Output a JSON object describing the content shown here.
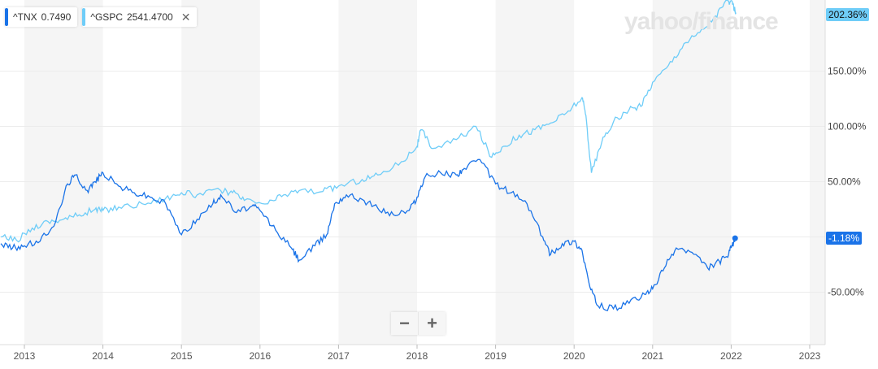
{
  "legend": [
    {
      "symbol": "^TNX",
      "value": "0.7490",
      "color": "#1a73e8"
    },
    {
      "symbol": "^GSPC",
      "value": "2541.4700",
      "color": "#6fcdf8",
      "close": "✕"
    }
  ],
  "watermark": "yahoo/finance",
  "zoom": {
    "minus": "−",
    "plus": "+"
  },
  "chart_data": {
    "type": "line",
    "xlabel": "",
    "ylabel": "",
    "xlim": [
      2012.7,
      2023.2
    ],
    "ylim": [
      -90,
      218
    ],
    "x_ticks": [
      "2013",
      "2014",
      "2015",
      "2016",
      "2017",
      "2018",
      "2019",
      "2020",
      "2021",
      "2022",
      "2023"
    ],
    "y_ticks": [
      {
        "v": 150,
        "label": "150.00%"
      },
      {
        "v": 100,
        "label": "100.00%"
      },
      {
        "v": 50,
        "label": "50.00%"
      },
      {
        "v": -50,
        "label": "-50.00%"
      }
    ],
    "end_labels": {
      "gspc": "202.36%",
      "tnx": "-1.18%"
    },
    "series": [
      {
        "name": "^GSPC",
        "color": "#6fcdf8",
        "x": [
          2012.7,
          2012.9,
          2013.1,
          2013.3,
          2013.5,
          2013.7,
          2013.9,
          2014.0,
          2014.2,
          2014.5,
          2014.8,
          2015.0,
          2015.2,
          2015.5,
          2015.65,
          2015.8,
          2016.1,
          2016.3,
          2016.5,
          2016.8,
          2017.0,
          2017.3,
          2017.5,
          2017.8,
          2018.0,
          2018.05,
          2018.2,
          2018.5,
          2018.75,
          2018.95,
          2019.1,
          2019.3,
          2019.5,
          2019.7,
          2019.9,
          2020.1,
          2020.15,
          2020.22,
          2020.35,
          2020.5,
          2020.7,
          2020.85,
          2021.0,
          2021.2,
          2021.4,
          2021.6,
          2021.8,
          2021.95,
          2022.02,
          2022.06
        ],
        "y": [
          0,
          -3,
          8,
          14,
          16,
          20,
          25,
          24,
          27,
          30,
          35,
          40,
          38,
          42,
          40,
          33,
          30,
          38,
          42,
          41,
          46,
          52,
          56,
          68,
          82,
          97,
          80,
          88,
          100,
          72,
          82,
          92,
          97,
          103,
          112,
          126,
          110,
          58,
          85,
          104,
          115,
          118,
          140,
          155,
          175,
          185,
          200,
          214,
          210,
          203
        ]
      },
      {
        "name": "^TNX",
        "color": "#1a73e8",
        "x": [
          2012.7,
          2012.85,
          2013.0,
          2013.2,
          2013.4,
          2013.55,
          2013.65,
          2013.8,
          2013.9,
          2014.0,
          2014.2,
          2014.4,
          2014.6,
          2014.8,
          2015.0,
          2015.2,
          2015.4,
          2015.5,
          2015.7,
          2015.9,
          2016.0,
          2016.2,
          2016.4,
          2016.5,
          2016.7,
          2016.85,
          2016.95,
          2017.1,
          2017.3,
          2017.5,
          2017.7,
          2017.9,
          2018.0,
          2018.1,
          2018.3,
          2018.5,
          2018.6,
          2018.8,
          2019.0,
          2019.2,
          2019.4,
          2019.6,
          2019.7,
          2019.85,
          2020.0,
          2020.1,
          2020.2,
          2020.3,
          2020.5,
          2020.7,
          2020.9,
          2021.0,
          2021.15,
          2021.3,
          2021.5,
          2021.7,
          2021.85,
          2021.95,
          2022.0,
          2022.05
        ],
        "y": [
          -6,
          -10,
          -8,
          -4,
          14,
          48,
          56,
          42,
          50,
          58,
          46,
          40,
          36,
          30,
          2,
          16,
          30,
          38,
          22,
          28,
          24,
          6,
          -10,
          -21,
          -8,
          2,
          30,
          38,
          34,
          26,
          20,
          24,
          36,
          54,
          58,
          56,
          62,
          70,
          48,
          40,
          30,
          0,
          -16,
          -6,
          -4,
          -12,
          -45,
          -62,
          -65,
          -60,
          -52,
          -47,
          -28,
          -10,
          -14,
          -28,
          -22,
          -18,
          -10,
          -1.18
        ]
      }
    ]
  }
}
